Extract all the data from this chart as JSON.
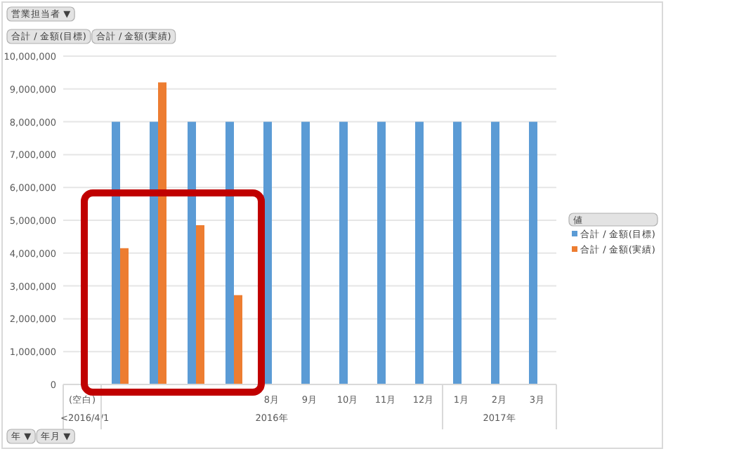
{
  "chart_data": {
    "type": "bar",
    "categories": [
      "(空白)",
      null,
      null,
      null,
      null,
      "8月",
      "9月",
      "10月",
      "11月",
      "12月",
      "1月",
      "2月",
      "3月"
    ],
    "series": [
      {
        "name": "合計 / 金額(目標)",
        "color": "#5b9bd5",
        "values": [
          null,
          8000000,
          8000000,
          8000000,
          8000000,
          8000000,
          8000000,
          8000000,
          8000000,
          8000000,
          8000000,
          8000000,
          8000000
        ]
      },
      {
        "name": "合計 / 金額(実績)",
        "color": "#ed7d31",
        "values": [
          null,
          4150000,
          9200000,
          4850000,
          2720000,
          null,
          null,
          null,
          null,
          null,
          null,
          null,
          null
        ]
      }
    ],
    "ylim": [
      0,
      10000000
    ],
    "yticks": [
      {
        "value": 0,
        "label": "0"
      },
      {
        "value": 1000000,
        "label": "1,000,000"
      },
      {
        "value": 2000000,
        "label": "2,000,000"
      },
      {
        "value": 3000000,
        "label": "3,000,000"
      },
      {
        "value": 4000000,
        "label": "4,000,000"
      },
      {
        "value": 5000000,
        "label": "5,000,000"
      },
      {
        "value": 6000000,
        "label": "6,000,000"
      },
      {
        "value": 7000000,
        "label": "7,000,000"
      },
      {
        "value": 8000000,
        "label": "8,000,000"
      },
      {
        "value": 9000000,
        "label": "9,000,000"
      },
      {
        "value": 10000000,
        "label": "10,000,000"
      }
    ],
    "grid": "y",
    "legend": "right",
    "legend_title": "値",
    "annotations": [
      "<2016/4/1",
      "2016年",
      "2017年",
      "営業担当者 ▼",
      "合計 / 金額(目標)",
      "合計 / 金額(実績)",
      "年 ▼",
      "年月 ▼"
    ]
  }
}
